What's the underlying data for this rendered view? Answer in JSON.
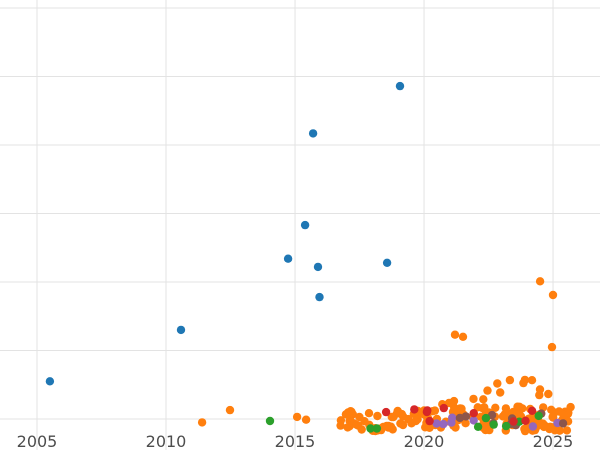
{
  "chart": {
    "background": "#ffffff",
    "grid_color": "#e3e3e3",
    "tick_label_color": "#4d4d4d",
    "tick_font_size": 16,
    "marker_radius": 4.2
  },
  "chart_data": {
    "type": "scatter",
    "title": "",
    "xlabel": "",
    "ylabel": "",
    "grid": true,
    "legend": "none",
    "x_ticks": [
      2005,
      2010,
      2015,
      2020,
      2025
    ],
    "x_tick_labels": [
      "2005",
      "2010",
      "2015",
      "2020",
      "2025"
    ],
    "xlim": [
      2003.566,
      2026.82
    ],
    "ylim": [
      -0.453,
      6.117
    ],
    "y_gridlines": [
      0,
      1,
      2,
      3,
      4,
      5,
      6
    ],
    "cluster_seed": 42,
    "series": [
      {
        "name": "orange",
        "color": "#ff7f0e",
        "points": [
          [
            2011.4,
            -0.05
          ],
          [
            2012.48,
            0.13
          ],
          [
            2015.08,
            0.03
          ],
          [
            2015.43,
            -0.01
          ],
          [
            2021.2,
            1.23
          ],
          [
            2021.51,
            1.2
          ],
          [
            2023.91,
            0.57
          ],
          [
            2024.5,
            2.01
          ],
          [
            2025.0,
            1.81
          ],
          [
            2024.96,
            1.05
          ]
        ],
        "clusters": [
          {
            "count": 55,
            "x": [
              2016.7,
              2020.2
            ],
            "v": [
              -0.18,
              0.12
            ]
          },
          {
            "count": 110,
            "x": [
              2019.8,
              2025.7
            ],
            "v": [
              -0.18,
              0.18
            ]
          },
          {
            "count": 14,
            "x": [
              2020.5,
              2025.7
            ],
            "v": [
              0.2,
              0.62
            ]
          }
        ]
      },
      {
        "name": "purple",
        "color": "#9467bd",
        "points": [],
        "clusters": [
          {
            "count": 7,
            "x": [
              2019.6,
              2025.2
            ],
            "v": [
              -0.16,
              0.02
            ]
          }
        ]
      },
      {
        "name": "brown",
        "color": "#8c564b",
        "points": [],
        "clusters": [
          {
            "count": 9,
            "x": [
              2020.8,
              2025.5
            ],
            "v": [
              -0.14,
              0.08
            ]
          }
        ]
      },
      {
        "name": "green",
        "color": "#2ca02c",
        "points": [
          [
            2014.03,
            -0.03
          ]
        ],
        "clusters": [
          {
            "count": 8,
            "x": [
              2016.9,
              2025.4
            ],
            "v": [
              -0.15,
              0.08
            ]
          }
        ]
      },
      {
        "name": "red",
        "color": "#d62728",
        "points": [
          [
            2018.53,
            0.1
          ],
          [
            2024.19,
            0.12
          ]
        ],
        "clusters": [
          {
            "count": 8,
            "x": [
              2018.2,
              2024.9
            ],
            "v": [
              -0.12,
              0.16
            ]
          }
        ]
      },
      {
        "name": "blue",
        "color": "#1f77b4",
        "points": [
          [
            2005.5,
            0.55
          ],
          [
            2010.58,
            1.3
          ],
          [
            2014.73,
            2.34
          ],
          [
            2015.39,
            2.83
          ],
          [
            2015.7,
            4.17
          ],
          [
            2015.89,
            2.22
          ],
          [
            2015.95,
            1.78
          ],
          [
            2018.57,
            2.28
          ],
          [
            2019.07,
            4.86
          ]
        ],
        "clusters": []
      }
    ]
  }
}
